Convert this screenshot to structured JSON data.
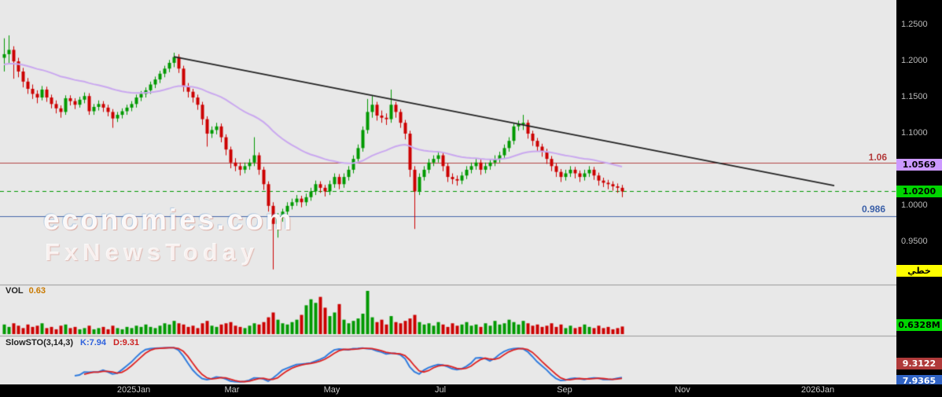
{
  "watermark": {
    "line1": "economies.com",
    "line2": "FxNewsToday"
  },
  "price_axis": {
    "labels": [
      {
        "text": "1.2500"
      },
      {
        "text": "1.2000"
      },
      {
        "text": "1.1500"
      },
      {
        "text": "1.1000"
      },
      {
        "text": "1.0000"
      },
      {
        "text": "0.9500"
      }
    ],
    "ma_badge": "1.0569",
    "last_price_badge": "1.0200",
    "scale_button_label": "خطي",
    "volume_badge": "0.6328M",
    "stoch_d_badge": "9.3122",
    "stoch_k_badge": "7.9365",
    "colors": {
      "panel_bg": "#000000",
      "label_text": "#b9b9b9",
      "ma_badge": "#cc99ff",
      "last_price_badge": "#00d500",
      "scale_button": "#ffff00",
      "volume_badge": "#00d500",
      "stoch_d_badge": "#b03a3a",
      "stoch_k_badge": "#2f62c4"
    }
  },
  "time_axis": {
    "labels": [
      "2025Jan",
      "Mar",
      "May",
      "Jul",
      "Sep",
      "Nov",
      "2026Jan"
    ]
  },
  "chart_data": [
    {
      "type": "candlestick",
      "title": "",
      "ylim": [
        0.891,
        1.285
      ],
      "up_color": "#009900",
      "down_color": "#cc0000",
      "last_close": 1.02,
      "ma": {
        "kind": "ema",
        "period": 40,
        "seed": 1.195,
        "color": "#c9a7ef",
        "last_value": 1.0569
      },
      "trendline": {
        "from_index": 36,
        "from_price": 1.2065,
        "to_index": 176,
        "to_price": 1.028,
        "color": "#222222"
      },
      "hlines": [
        {
          "price": 1.06,
          "style": "solid",
          "color": "#b34444",
          "label": "1.06"
        },
        {
          "price": 1.02,
          "style": "dashed",
          "color": "#009900",
          "label": "1.0200"
        },
        {
          "price": 0.986,
          "style": "solid",
          "color": "#4466aa",
          "label": "0.986"
        }
      ],
      "ohlc": [
        [
          1.205,
          1.232,
          1.186,
          1.21
        ],
        [
          1.21,
          1.236,
          1.196,
          1.216
        ],
        [
          1.216,
          1.221,
          1.176,
          1.2
        ],
        [
          1.2,
          1.205,
          1.178,
          1.186
        ],
        [
          1.186,
          1.191,
          1.164,
          1.172
        ],
        [
          1.172,
          1.177,
          1.155,
          1.162
        ],
        [
          1.162,
          1.168,
          1.148,
          1.155
        ],
        [
          1.155,
          1.16,
          1.142,
          1.15
        ],
        [
          1.15,
          1.166,
          1.146,
          1.161
        ],
        [
          1.161,
          1.165,
          1.144,
          1.15
        ],
        [
          1.15,
          1.154,
          1.135,
          1.141
        ],
        [
          1.141,
          1.146,
          1.128,
          1.135
        ],
        [
          1.135,
          1.139,
          1.122,
          1.13
        ],
        [
          1.13,
          1.153,
          1.126,
          1.149
        ],
        [
          1.149,
          1.153,
          1.139,
          1.145
        ],
        [
          1.145,
          1.149,
          1.134,
          1.14
        ],
        [
          1.14,
          1.151,
          1.136,
          1.147
        ],
        [
          1.147,
          1.157,
          1.142,
          1.152
        ],
        [
          1.152,
          1.156,
          1.126,
          1.131
        ],
        [
          1.131,
          1.141,
          1.126,
          1.137
        ],
        [
          1.137,
          1.146,
          1.132,
          1.141
        ],
        [
          1.141,
          1.145,
          1.13,
          1.136
        ],
        [
          1.136,
          1.14,
          1.124,
          1.13
        ],
        [
          1.13,
          1.134,
          1.108,
          1.121
        ],
        [
          1.121,
          1.13,
          1.116,
          1.126
        ],
        [
          1.126,
          1.135,
          1.121,
          1.131
        ],
        [
          1.131,
          1.14,
          1.126,
          1.136
        ],
        [
          1.136,
          1.145,
          1.131,
          1.141
        ],
        [
          1.141,
          1.154,
          1.136,
          1.15
        ],
        [
          1.15,
          1.159,
          1.145,
          1.155
        ],
        [
          1.155,
          1.164,
          1.15,
          1.16
        ],
        [
          1.16,
          1.172,
          1.155,
          1.168
        ],
        [
          1.168,
          1.179,
          1.163,
          1.175
        ],
        [
          1.175,
          1.187,
          1.17,
          1.183
        ],
        [
          1.183,
          1.194,
          1.178,
          1.19
        ],
        [
          1.19,
          1.202,
          1.185,
          1.198
        ],
        [
          1.198,
          1.212,
          1.192,
          1.206
        ],
        [
          1.206,
          1.21,
          1.184,
          1.19
        ],
        [
          1.19,
          1.194,
          1.158,
          1.165
        ],
        [
          1.165,
          1.17,
          1.15,
          1.158
        ],
        [
          1.158,
          1.162,
          1.143,
          1.15
        ],
        [
          1.15,
          1.154,
          1.133,
          1.14
        ],
        [
          1.14,
          1.144,
          1.112,
          1.12
        ],
        [
          1.12,
          1.124,
          1.082,
          1.1
        ],
        [
          1.1,
          1.11,
          1.094,
          1.105
        ],
        [
          1.105,
          1.115,
          1.099,
          1.11
        ],
        [
          1.11,
          1.114,
          1.088,
          1.095
        ],
        [
          1.095,
          1.099,
          1.07,
          1.078
        ],
        [
          1.078,
          1.082,
          1.052,
          1.06
        ],
        [
          1.06,
          1.066,
          1.048,
          1.055
        ],
        [
          1.055,
          1.06,
          1.042,
          1.05
        ],
        [
          1.05,
          1.06,
          1.045,
          1.055
        ],
        [
          1.055,
          1.065,
          1.05,
          1.06
        ],
        [
          1.06,
          1.095,
          1.055,
          1.07
        ],
        [
          1.07,
          1.074,
          1.043,
          1.05
        ],
        [
          1.05,
          1.054,
          1.022,
          1.03
        ],
        [
          1.03,
          1.034,
          0.992,
          1.0
        ],
        [
          1.0,
          1.005,
          0.912,
          0.975
        ],
        [
          0.975,
          0.99,
          0.956,
          0.985
        ],
        [
          0.985,
          0.996,
          0.978,
          0.992
        ],
        [
          0.992,
          1.005,
          0.987,
          1.0
        ],
        [
          1.0,
          1.01,
          0.995,
          1.005
        ],
        [
          1.005,
          1.015,
          1.0,
          1.01
        ],
        [
          1.01,
          1.014,
          0.998,
          1.005
        ],
        [
          1.005,
          1.017,
          1.0,
          1.012
        ],
        [
          1.012,
          1.025,
          1.007,
          1.02
        ],
        [
          1.02,
          1.035,
          1.015,
          1.03
        ],
        [
          1.03,
          1.034,
          1.018,
          1.025
        ],
        [
          1.025,
          1.029,
          1.013,
          1.02
        ],
        [
          1.02,
          1.035,
          1.015,
          1.03
        ],
        [
          1.03,
          1.045,
          1.025,
          1.04
        ],
        [
          1.04,
          1.044,
          1.023,
          1.03
        ],
        [
          1.03,
          1.045,
          1.025,
          1.04
        ],
        [
          1.04,
          1.055,
          1.035,
          1.05
        ],
        [
          1.05,
          1.07,
          1.045,
          1.065
        ],
        [
          1.065,
          1.085,
          1.06,
          1.08
        ],
        [
          1.08,
          1.11,
          1.075,
          1.105
        ],
        [
          1.105,
          1.148,
          1.1,
          1.13
        ],
        [
          1.13,
          1.152,
          1.122,
          1.14
        ],
        [
          1.14,
          1.144,
          1.118,
          1.125
        ],
        [
          1.125,
          1.132,
          1.115,
          1.122
        ],
        [
          1.122,
          1.128,
          1.112,
          1.12
        ],
        [
          1.12,
          1.161,
          1.115,
          1.14
        ],
        [
          1.14,
          1.144,
          1.122,
          1.13
        ],
        [
          1.13,
          1.134,
          1.108,
          1.115
        ],
        [
          1.115,
          1.119,
          1.092,
          1.1
        ],
        [
          1.1,
          1.104,
          1.04,
          1.05
        ],
        [
          1.05,
          1.055,
          0.968,
          1.02
        ],
        [
          1.02,
          1.045,
          1.015,
          1.04
        ],
        [
          1.04,
          1.055,
          1.035,
          1.05
        ],
        [
          1.05,
          1.065,
          1.045,
          1.06
        ],
        [
          1.06,
          1.07,
          1.055,
          1.065
        ],
        [
          1.065,
          1.076,
          1.06,
          1.07
        ],
        [
          1.07,
          1.074,
          1.048,
          1.055
        ],
        [
          1.055,
          1.059,
          1.033,
          1.04
        ],
        [
          1.04,
          1.045,
          1.03,
          1.037
        ],
        [
          1.037,
          1.042,
          1.028,
          1.035
        ],
        [
          1.035,
          1.047,
          1.03,
          1.042
        ],
        [
          1.042,
          1.055,
          1.037,
          1.05
        ],
        [
          1.05,
          1.06,
          1.045,
          1.055
        ],
        [
          1.055,
          1.065,
          1.05,
          1.06
        ],
        [
          1.06,
          1.064,
          1.043,
          1.05
        ],
        [
          1.05,
          1.06,
          1.045,
          1.055
        ],
        [
          1.055,
          1.065,
          1.05,
          1.06
        ],
        [
          1.06,
          1.07,
          1.055,
          1.065
        ],
        [
          1.065,
          1.075,
          1.06,
          1.07
        ],
        [
          1.07,
          1.085,
          1.065,
          1.08
        ],
        [
          1.08,
          1.095,
          1.075,
          1.09
        ],
        [
          1.09,
          1.115,
          1.085,
          1.11
        ],
        [
          1.11,
          1.118,
          1.104,
          1.113
        ],
        [
          1.113,
          1.126,
          1.105,
          1.115
        ],
        [
          1.115,
          1.119,
          1.093,
          1.1
        ],
        [
          1.1,
          1.104,
          1.083,
          1.09
        ],
        [
          1.09,
          1.094,
          1.075,
          1.082
        ],
        [
          1.082,
          1.086,
          1.068,
          1.075
        ],
        [
          1.075,
          1.079,
          1.058,
          1.065
        ],
        [
          1.065,
          1.069,
          1.048,
          1.055
        ],
        [
          1.055,
          1.059,
          1.04,
          1.047
        ],
        [
          1.047,
          1.051,
          1.033,
          1.04
        ],
        [
          1.04,
          1.05,
          1.035,
          1.045
        ],
        [
          1.045,
          1.055,
          1.04,
          1.05
        ],
        [
          1.05,
          1.054,
          1.038,
          1.045
        ],
        [
          1.045,
          1.049,
          1.033,
          1.04
        ],
        [
          1.04,
          1.05,
          1.035,
          1.045
        ],
        [
          1.045,
          1.055,
          1.04,
          1.05
        ],
        [
          1.05,
          1.054,
          1.036,
          1.042
        ],
        [
          1.042,
          1.046,
          1.028,
          1.035
        ],
        [
          1.035,
          1.039,
          1.026,
          1.032
        ],
        [
          1.032,
          1.036,
          1.023,
          1.03
        ],
        [
          1.03,
          1.034,
          1.021,
          1.027
        ],
        [
          1.027,
          1.031,
          1.018,
          1.025
        ],
        [
          1.025,
          1.029,
          1.012,
          1.02
        ]
      ]
    },
    {
      "type": "volume",
      "label": "VOL",
      "value": "0.63",
      "unit": "M",
      "last_value": 0.6328,
      "values": [
        0.8,
        0.6,
        0.9,
        0.7,
        0.5,
        0.8,
        0.6,
        0.7,
        0.9,
        0.5,
        0.6,
        0.4,
        0.7,
        0.8,
        0.5,
        0.6,
        0.4,
        0.5,
        0.7,
        0.4,
        0.5,
        0.6,
        0.4,
        0.7,
        0.5,
        0.4,
        0.6,
        0.5,
        0.7,
        0.6,
        0.8,
        0.6,
        0.5,
        0.7,
        0.9,
        0.8,
        1.1,
        0.9,
        0.8,
        0.6,
        0.7,
        0.5,
        0.9,
        1.1,
        0.7,
        0.6,
        0.8,
        0.9,
        1.0,
        0.7,
        0.6,
        0.5,
        0.7,
        0.9,
        0.8,
        1.0,
        1.4,
        1.8,
        1.2,
        0.9,
        0.8,
        1.0,
        1.2,
        1.6,
        2.4,
        2.9,
        2.6,
        3.1,
        2.2,
        1.5,
        1.8,
        2.5,
        1.2,
        0.9,
        1.1,
        1.3,
        1.7,
        3.6,
        1.4,
        1.0,
        1.2,
        0.8,
        1.5,
        1.0,
        0.9,
        1.1,
        1.3,
        1.6,
        1.0,
        0.8,
        0.9,
        0.7,
        1.0,
        0.8,
        0.6,
        0.9,
        0.7,
        0.8,
        1.0,
        0.7,
        0.8,
        0.6,
        0.9,
        0.7,
        1.1,
        0.8,
        0.9,
        1.2,
        1.0,
        0.8,
        1.1,
        0.9,
        0.7,
        0.8,
        0.6,
        0.7,
        0.9,
        0.6,
        0.8,
        0.5,
        0.7,
        0.5,
        0.6,
        0.8,
        0.6,
        0.5,
        0.7,
        0.5,
        0.6,
        0.4,
        0.5,
        0.6328
      ]
    },
    {
      "type": "stochastic",
      "label": "SlowSTO(3,14,3)",
      "k_label": "K:7.94",
      "d_label": "D:9.31",
      "params": [
        3,
        14,
        3
      ],
      "k_last": 7.94,
      "d_last": 9.31,
      "k_color": "#2f7bdd",
      "d_color": "#dd2222",
      "ylim": [
        0,
        100
      ]
    }
  ]
}
